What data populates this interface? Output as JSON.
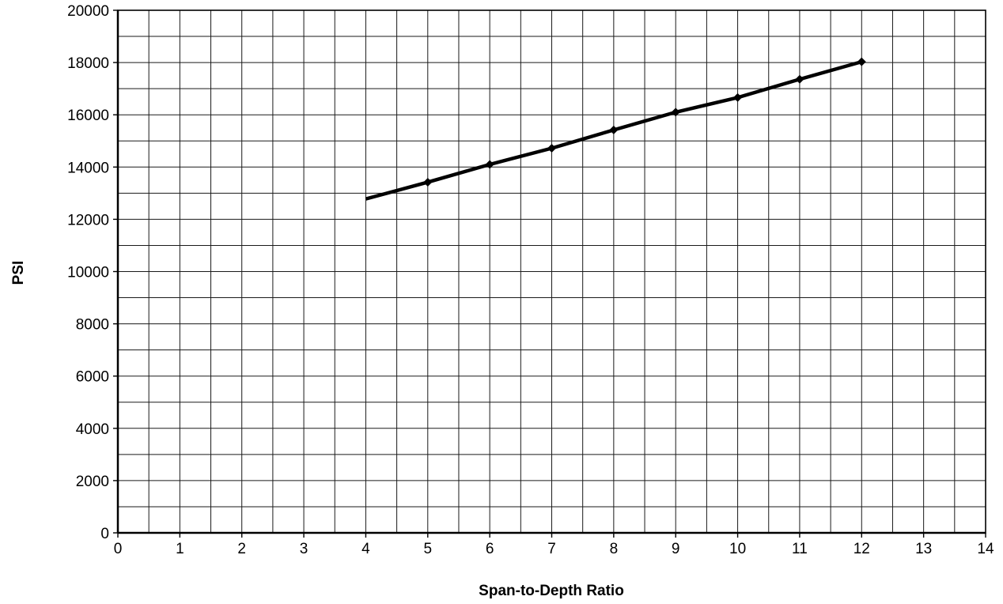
{
  "chart_data": {
    "type": "line",
    "title": "",
    "xlabel": "Span-to-Depth Ratio",
    "ylabel": "PSI",
    "xlim": [
      0,
      14
    ],
    "ylim": [
      0,
      20000
    ],
    "x_ticks": [
      0,
      1,
      2,
      3,
      4,
      5,
      6,
      7,
      8,
      9,
      10,
      11,
      12,
      13,
      14
    ],
    "y_ticks": [
      0,
      2000,
      4000,
      6000,
      8000,
      10000,
      12000,
      14000,
      16000,
      18000,
      20000
    ],
    "x_minor_step": 0.5,
    "y_minor_step": 1000,
    "grid": true,
    "legend": "none",
    "series": [
      {
        "color": "#000000",
        "marker": "diamond",
        "points": [
          {
            "x": 4,
            "y": 12780,
            "marker": false
          },
          {
            "x": 5,
            "y": 13420,
            "marker": true
          },
          {
            "x": 6,
            "y": 14100,
            "marker": true
          },
          {
            "x": 7,
            "y": 14720,
            "marker": true
          },
          {
            "x": 8,
            "y": 15420,
            "marker": true
          },
          {
            "x": 9,
            "y": 16100,
            "marker": true
          },
          {
            "x": 10,
            "y": 16660,
            "marker": true
          },
          {
            "x": 11,
            "y": 17360,
            "marker": true
          },
          {
            "x": 12,
            "y": 18030,
            "marker": true
          }
        ]
      }
    ]
  }
}
